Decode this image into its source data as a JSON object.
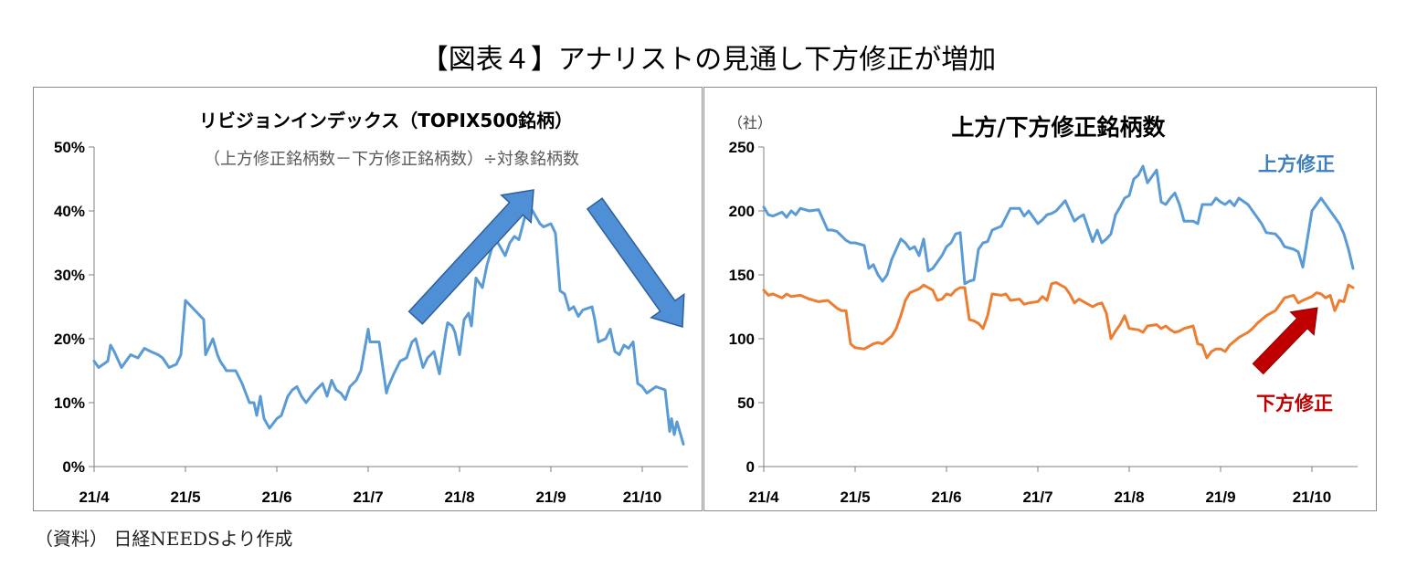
{
  "title": "【図表４】アナリストの見通し下方修正が増加",
  "source": "（資料） 日経NEEDSより作成",
  "colors": {
    "blue": "#5b9bd5",
    "orange": "#ed7d31",
    "arrow_blue": "#4f8fd6",
    "arrow_red": "#c00000",
    "axis": "#808080",
    "panel_border": "#8c8c8c"
  },
  "chart_data": [
    {
      "type": "line",
      "title": "リビジョンインデックス（TOPIX500銘柄）",
      "subtitle": "（上方修正銘柄数－下方修正銘柄数）÷対象銘柄数",
      "ylim": [
        0,
        50
      ],
      "yticks": [
        "0%",
        "10%",
        "20%",
        "30%",
        "40%",
        "50%"
      ],
      "ytick_values": [
        0,
        10,
        20,
        30,
        40,
        50
      ],
      "xticks": [
        "21/4",
        "21/5",
        "21/6",
        "21/7",
        "21/8",
        "21/9",
        "21/10"
      ],
      "xtick_positions": [
        0,
        1,
        2,
        3,
        4,
        5,
        6
      ],
      "xlim": [
        0,
        6.5
      ],
      "grid": false,
      "series": [
        {
          "color": "#5b9bd5",
          "x": [
            0,
            0.05,
            0.15,
            0.18,
            0.22,
            0.3,
            0.35,
            0.4,
            0.48,
            0.55,
            0.62,
            0.7,
            0.75,
            0.82,
            0.9,
            0.95,
            1.0,
            1.2,
            1.22,
            1.3,
            1.35,
            1.38,
            1.45,
            1.55,
            1.62,
            1.7,
            1.75,
            1.78,
            1.82,
            1.86,
            1.92,
            2.0,
            2.05,
            2.12,
            2.17,
            2.22,
            2.27,
            2.32,
            2.4,
            2.43,
            2.5,
            2.55,
            2.6,
            2.65,
            2.7,
            2.75,
            2.8,
            2.87,
            2.92,
            3.0,
            3.02,
            3.12,
            3.2,
            3.22,
            3.28,
            3.35,
            3.42,
            3.48,
            3.52,
            3.6,
            3.65,
            3.72,
            3.78,
            3.85,
            3.87,
            3.92,
            3.95,
            4.0,
            4.05,
            4.1,
            4.13,
            4.18,
            4.25,
            4.3,
            4.35,
            4.38,
            4.42,
            4.5,
            4.55,
            4.6,
            4.65,
            4.75,
            4.8,
            4.88,
            4.92,
            5.0,
            5.05,
            5.1,
            5.15,
            5.2,
            5.25,
            5.3,
            5.35,
            5.45,
            5.48,
            5.52,
            5.6,
            5.65,
            5.7,
            5.75,
            5.8,
            5.85,
            5.9,
            5.95,
            6.0,
            6.05,
            6.1,
            6.15,
            6.25,
            6.3,
            6.32,
            6.35,
            6.38,
            6.45
          ],
          "values": [
            16.5,
            15.5,
            16.5,
            19.0,
            18.0,
            15.5,
            16.5,
            17.5,
            17.0,
            18.5,
            18.0,
            17.5,
            17.0,
            15.5,
            16.0,
            17.5,
            26.0,
            23.0,
            17.5,
            20.0,
            17.5,
            16.5,
            15.0,
            15.0,
            13.0,
            10.0,
            10.0,
            8.0,
            11.0,
            7.5,
            6.0,
            7.5,
            8.0,
            11.0,
            12.0,
            12.5,
            11.0,
            10.0,
            11.5,
            12.0,
            13.0,
            11.0,
            13.5,
            12.0,
            11.5,
            10.5,
            12.5,
            13.5,
            15.0,
            21.5,
            19.5,
            19.5,
            11.5,
            12.5,
            14.5,
            16.5,
            17.0,
            19.5,
            20.0,
            15.5,
            17.0,
            18.0,
            14.5,
            21.0,
            22.5,
            22.0,
            21.0,
            17.5,
            23.0,
            24.0,
            22.0,
            29.5,
            28.0,
            31.5,
            34.0,
            35.5,
            35.0,
            33.0,
            35.0,
            36.0,
            35.5,
            41.0,
            40.0,
            38.0,
            37.5,
            38.0,
            36.5,
            27.5,
            27.0,
            24.5,
            25.0,
            23.5,
            24.5,
            25.0,
            23.0,
            19.5,
            20.0,
            21.5,
            18.0,
            17.5,
            19.0,
            18.5,
            19.5,
            13.0,
            12.5,
            11.5,
            12.0,
            12.5,
            12.0,
            5.5,
            7.5,
            5.0,
            7.0,
            3.5
          ]
        }
      ]
    },
    {
      "type": "line",
      "title": "上方/下方修正銘柄数",
      "unit": "（社）",
      "ylim": [
        0,
        250
      ],
      "yticks": [
        "0",
        "50",
        "100",
        "150",
        "200",
        "250"
      ],
      "ytick_values": [
        0,
        50,
        100,
        150,
        200,
        250
      ],
      "xticks": [
        "21/4",
        "21/5",
        "21/6",
        "21/7",
        "21/8",
        "21/9",
        "21/10"
      ],
      "xtick_positions": [
        0,
        1,
        2,
        3,
        4,
        5,
        6
      ],
      "xlim": [
        0,
        6.5
      ],
      "grid": false,
      "series": [
        {
          "name": "上方修正",
          "color": "#5b9bd5",
          "x": [
            0,
            0.05,
            0.1,
            0.2,
            0.25,
            0.3,
            0.35,
            0.4,
            0.5,
            0.6,
            0.7,
            0.75,
            0.8,
            0.9,
            0.95,
            1.0,
            1.1,
            1.15,
            1.2,
            1.25,
            1.3,
            1.35,
            1.4,
            1.45,
            1.5,
            1.55,
            1.6,
            1.65,
            1.7,
            1.75,
            1.8,
            1.85,
            1.9,
            1.95,
            2.0,
            2.05,
            2.1,
            2.15,
            2.2,
            2.25,
            2.3,
            2.35,
            2.4,
            2.45,
            2.5,
            2.6,
            2.65,
            2.7,
            2.8,
            2.85,
            2.9,
            3.0,
            3.05,
            3.1,
            3.15,
            3.2,
            3.3,
            3.35,
            3.4,
            3.45,
            3.5,
            3.6,
            3.65,
            3.7,
            3.75,
            3.8,
            3.85,
            3.9,
            3.95,
            4.0,
            4.05,
            4.1,
            4.15,
            4.2,
            4.3,
            4.35,
            4.4,
            4.45,
            4.5,
            4.55,
            4.6,
            4.7,
            4.75,
            4.8,
            4.85,
            4.9,
            4.95,
            5.0,
            5.05,
            5.1,
            5.15,
            5.2,
            5.3,
            5.35,
            5.4,
            5.45,
            5.5,
            5.6,
            5.65,
            5.7,
            5.8,
            5.85,
            5.9,
            6.0,
            6.05,
            6.1,
            6.15,
            6.2,
            6.25,
            6.3,
            6.35,
            6.4,
            6.45
          ],
          "values": [
            203,
            197,
            196,
            199,
            195,
            200,
            197,
            202,
            200,
            201,
            185,
            185,
            184,
            177,
            175,
            175,
            173,
            155,
            158,
            150,
            145,
            150,
            162,
            170,
            178,
            175,
            170,
            172,
            165,
            178,
            153,
            155,
            160,
            165,
            172,
            175,
            182,
            183,
            143,
            145,
            146,
            170,
            175,
            176,
            185,
            188,
            195,
            202,
            202,
            196,
            200,
            190,
            193,
            197,
            198,
            200,
            208,
            200,
            192,
            195,
            197,
            176,
            185,
            175,
            178,
            182,
            197,
            203,
            210,
            212,
            225,
            228,
            235,
            222,
            232,
            207,
            205,
            210,
            214,
            205,
            192,
            192,
            190,
            205,
            205,
            205,
            210,
            207,
            205,
            208,
            204,
            210,
            205,
            200,
            195,
            190,
            183,
            182,
            178,
            172,
            170,
            168,
            156,
            200,
            205,
            210,
            205,
            200,
            195,
            190,
            182,
            170,
            155
          ]
        },
        {
          "name": "下方修正",
          "color": "#ed7d31",
          "x": [
            0,
            0.05,
            0.1,
            0.2,
            0.25,
            0.3,
            0.4,
            0.5,
            0.6,
            0.7,
            0.8,
            0.85,
            0.9,
            0.95,
            1.0,
            1.1,
            1.2,
            1.25,
            1.3,
            1.4,
            1.45,
            1.5,
            1.55,
            1.6,
            1.7,
            1.75,
            1.8,
            1.85,
            1.9,
            1.95,
            2.0,
            2.05,
            2.1,
            2.15,
            2.2,
            2.25,
            2.3,
            2.35,
            2.4,
            2.45,
            2.5,
            2.6,
            2.65,
            2.7,
            2.8,
            2.85,
            2.9,
            3.0,
            3.05,
            3.1,
            3.15,
            3.2,
            3.3,
            3.35,
            3.4,
            3.45,
            3.5,
            3.6,
            3.65,
            3.7,
            3.75,
            3.8,
            3.85,
            3.9,
            3.95,
            4.0,
            4.1,
            4.15,
            4.2,
            4.3,
            4.35,
            4.4,
            4.45,
            4.5,
            4.55,
            4.6,
            4.7,
            4.75,
            4.8,
            4.85,
            4.9,
            4.95,
            5.0,
            5.05,
            5.1,
            5.15,
            5.2,
            5.3,
            5.35,
            5.4,
            5.45,
            5.5,
            5.6,
            5.65,
            5.7,
            5.8,
            5.85,
            5.9,
            6.0,
            6.05,
            6.1,
            6.15,
            6.2,
            6.25,
            6.3,
            6.35,
            6.4,
            6.45
          ],
          "values": [
            138,
            134,
            135,
            132,
            135,
            133,
            134,
            131,
            129,
            130,
            124,
            122,
            122,
            96,
            93,
            92,
            96,
            97,
            96,
            102,
            108,
            118,
            130,
            136,
            139,
            142,
            140,
            138,
            130,
            131,
            135,
            134,
            138,
            140,
            140,
            115,
            114,
            112,
            108,
            118,
            135,
            134,
            135,
            130,
            131,
            127,
            128,
            129,
            133,
            130,
            143,
            144,
            140,
            135,
            128,
            131,
            129,
            125,
            127,
            128,
            120,
            100,
            106,
            111,
            118,
            108,
            107,
            105,
            110,
            111,
            108,
            110,
            107,
            105,
            106,
            108,
            110,
            96,
            95,
            85,
            90,
            92,
            92,
            90,
            95,
            98,
            101,
            105,
            108,
            112,
            115,
            118,
            122,
            127,
            132,
            134,
            128,
            130,
            133,
            136,
            135,
            132,
            134,
            122,
            130,
            129,
            142,
            140
          ]
        }
      ]
    }
  ]
}
